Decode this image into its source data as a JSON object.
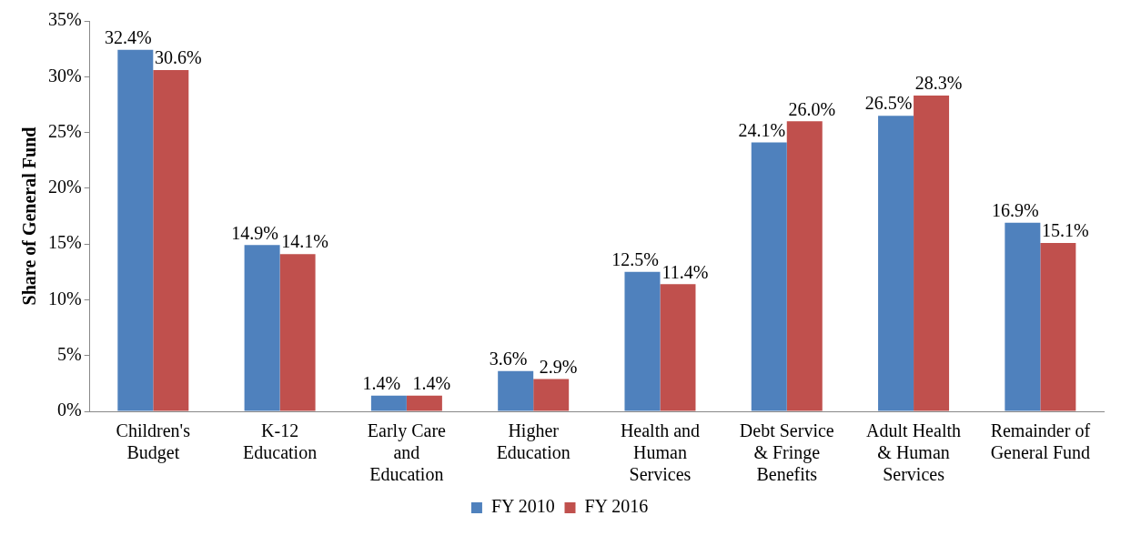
{
  "chart_data": {
    "type": "bar",
    "ylabel": "Share of General Fund",
    "categories": [
      "Children's Budget",
      "K-12 Education",
      "Early Care and Education",
      "Higher Education",
      "Health and Human Services",
      "Debt Service & Fringe Benefits",
      "Adult Health & Human Services",
      "Remainder of General Fund"
    ],
    "series": [
      {
        "name": "FY 2010",
        "color": "#4f81bd",
        "values": [
          32.4,
          14.9,
          1.4,
          3.6,
          12.5,
          24.1,
          26.5,
          16.9
        ],
        "value_labels": [
          "32.4%",
          "14.9%",
          "1.4%",
          "3.6%",
          "12.5%",
          "24.1%",
          "26.5%",
          "16.9%"
        ]
      },
      {
        "name": "FY 2016",
        "color": "#c0504d",
        "values": [
          30.6,
          14.1,
          1.4,
          2.9,
          11.4,
          26.0,
          28.3,
          15.1
        ],
        "value_labels": [
          "30.6%",
          "14.1%",
          "1.4%",
          "2.9%",
          "11.4%",
          "26.0%",
          "28.3%",
          "15.1%"
        ]
      }
    ],
    "ylim": [
      0,
      35
    ],
    "yticks": [
      {
        "value": 0,
        "label": "0%"
      },
      {
        "value": 5,
        "label": "5%"
      },
      {
        "value": 10,
        "label": "10%"
      },
      {
        "value": 15,
        "label": "15%"
      },
      {
        "value": 20,
        "label": "20%"
      },
      {
        "value": 25,
        "label": "25%"
      },
      {
        "value": 30,
        "label": "30%"
      },
      {
        "value": 35,
        "label": "35%"
      }
    ],
    "grid": false,
    "legend": "bottom"
  }
}
